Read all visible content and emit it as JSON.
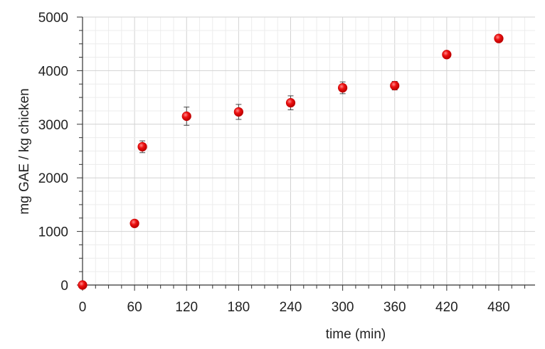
{
  "chart_data": {
    "type": "scatter",
    "title": "",
    "xlabel": "time (min)",
    "ylabel": "mg GAE / kg chicken",
    "xlim": [
      0,
      520
    ],
    "ylim": [
      0,
      5000
    ],
    "x_ticks": [
      0,
      60,
      120,
      180,
      240,
      300,
      360,
      420,
      480
    ],
    "x_tick_labels": [
      "0",
      "60",
      "120",
      "180",
      "240",
      "300",
      "360",
      "420",
      "480"
    ],
    "y_ticks": [
      0,
      1000,
      2000,
      3000,
      4000,
      5000
    ],
    "y_tick_labels": [
      "0",
      "1000",
      "2000",
      "3000",
      "4000",
      "5000"
    ],
    "grid": true,
    "legend": "none",
    "marker_color": "#ee1111",
    "series": [
      {
        "points": [
          {
            "x": 0,
            "y": 0,
            "err": 0
          },
          {
            "x": 60,
            "y": 1150,
            "err": 30
          },
          {
            "x": 69,
            "y": 2580,
            "err": 110
          },
          {
            "x": 120,
            "y": 3150,
            "err": 170
          },
          {
            "x": 180,
            "y": 3230,
            "err": 140
          },
          {
            "x": 240,
            "y": 3400,
            "err": 130
          },
          {
            "x": 300,
            "y": 3680,
            "err": 110
          },
          {
            "x": 360,
            "y": 3720,
            "err": 80
          },
          {
            "x": 420,
            "y": 4300,
            "err": 40
          },
          {
            "x": 480,
            "y": 4600,
            "err": 50
          }
        ]
      }
    ]
  }
}
